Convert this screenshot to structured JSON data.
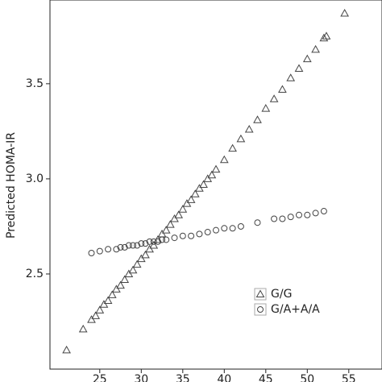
{
  "chart_data": {
    "type": "scatter",
    "y_label": "Predicted HOMA-IR",
    "xlim": [
      19,
      59
    ],
    "ylim": [
      2.0,
      3.94
    ],
    "xticks": [
      25,
      30,
      35,
      40,
      45,
      50,
      55
    ],
    "yticks": [
      2.5,
      {
        "value": 3,
        "label": "3.0"
      },
      3.5
    ],
    "legend": "lower right",
    "series": [
      {
        "name": "G/G",
        "marker": "triangle",
        "color": "#444444",
        "x": [
          21,
          23,
          24,
          24.5,
          25,
          25.5,
          26,
          26.5,
          27,
          27.5,
          28,
          28.5,
          29,
          29.5,
          30,
          30.5,
          31,
          31.5,
          32,
          32.5,
          33,
          33.5,
          34,
          34.5,
          35,
          35.5,
          36,
          36.5,
          37,
          37.5,
          38,
          38.5,
          39,
          40,
          41,
          42,
          43,
          44,
          45,
          46,
          47,
          48,
          49,
          50,
          51,
          52,
          52.3,
          54.5
        ],
        "y": [
          2.1,
          2.21,
          2.26,
          2.28,
          2.31,
          2.34,
          2.36,
          2.39,
          2.42,
          2.44,
          2.47,
          2.5,
          2.52,
          2.55,
          2.58,
          2.6,
          2.63,
          2.65,
          2.68,
          2.71,
          2.73,
          2.76,
          2.79,
          2.81,
          2.84,
          2.87,
          2.89,
          2.92,
          2.95,
          2.97,
          3.0,
          3.02,
          3.05,
          3.1,
          3.16,
          3.21,
          3.26,
          3.31,
          3.37,
          3.42,
          3.47,
          3.53,
          3.58,
          3.63,
          3.68,
          3.74,
          3.75,
          3.87
        ]
      },
      {
        "name": "G/A+A/A",
        "marker": "circle",
        "color": "#444444",
        "x": [
          24,
          25,
          26,
          27,
          27.5,
          28,
          28.5,
          29,
          29.5,
          30,
          30.5,
          31,
          31.5,
          32,
          32.5,
          33,
          34,
          35,
          36,
          37,
          38,
          39,
          40,
          41,
          42,
          44,
          46,
          47,
          48,
          49,
          50,
          51,
          52
        ],
        "y": [
          2.61,
          2.62,
          2.63,
          2.63,
          2.64,
          2.64,
          2.65,
          2.65,
          2.65,
          2.66,
          2.66,
          2.67,
          2.67,
          2.67,
          2.68,
          2.68,
          2.69,
          2.7,
          2.7,
          2.71,
          2.72,
          2.73,
          2.74,
          2.74,
          2.75,
          2.77,
          2.79,
          2.79,
          2.8,
          2.81,
          2.81,
          2.82,
          2.83
        ]
      }
    ]
  }
}
